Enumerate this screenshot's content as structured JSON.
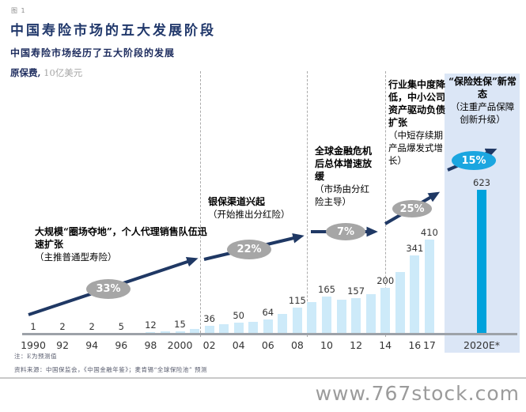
{
  "figure_label": "图 1",
  "chart_data": {
    "type": "bar",
    "title": "中国寿险市场的五大发展阶段",
    "subtitle": "中国寿险市场经历了五大阶段的发展",
    "unit_bold": "原保费,",
    "unit": "10亿美元",
    "ylim": [
      0,
      623
    ],
    "grid": false,
    "note": "bars with est:true are unlabeled intermediate years estimated from the plot",
    "bars": [
      {
        "year": "1990",
        "value": 1,
        "label": "1",
        "tick": "1990"
      },
      {
        "year": "1991",
        "value": 1.5,
        "est": true
      },
      {
        "year": "1992",
        "value": 2,
        "label": "2",
        "tick": "92"
      },
      {
        "year": "1993",
        "value": 2,
        "est": true
      },
      {
        "year": "1994",
        "value": 2,
        "label": "2",
        "tick": "94"
      },
      {
        "year": "1995",
        "value": 3.5,
        "est": true
      },
      {
        "year": "1996",
        "value": 5,
        "label": "5",
        "tick": "96"
      },
      {
        "year": "1997",
        "value": 8,
        "est": true
      },
      {
        "year": "1998",
        "value": 12,
        "label": "12",
        "tick": "98"
      },
      {
        "year": "1999",
        "value": 13,
        "est": true
      },
      {
        "year": "2000",
        "value": 15,
        "label": "15",
        "tick": "2000"
      },
      {
        "year": "2001",
        "value": 25,
        "est": true
      },
      {
        "year": "2002",
        "value": 36,
        "label": "36",
        "tick": "02"
      },
      {
        "year": "2003",
        "value": 43,
        "est": true
      },
      {
        "year": "2004",
        "value": 50,
        "label": "50",
        "tick": "04"
      },
      {
        "year": "2005",
        "value": 56,
        "est": true
      },
      {
        "year": "2006",
        "value": 64,
        "label": "64",
        "tick": "06"
      },
      {
        "year": "2007",
        "value": 88,
        "est": true
      },
      {
        "year": "2008",
        "value": 115,
        "label": "115",
        "tick": "08"
      },
      {
        "year": "2009",
        "value": 140,
        "est": true
      },
      {
        "year": "2010",
        "value": 165,
        "label": "165",
        "tick": "10"
      },
      {
        "year": "2011",
        "value": 150,
        "est": true
      },
      {
        "year": "2012",
        "value": 157,
        "label": "157",
        "tick": "12"
      },
      {
        "year": "2013",
        "value": 175,
        "est": true
      },
      {
        "year": "2014",
        "value": 200,
        "label": "200",
        "tick": "14"
      },
      {
        "year": "2015",
        "value": 270,
        "est": true
      },
      {
        "year": "2016",
        "value": 341,
        "label": "341",
        "tick": "16"
      },
      {
        "year": "2017",
        "value": 410,
        "label": "410",
        "tick": "17"
      },
      {
        "year": "2020E",
        "value": 623,
        "label": "623",
        "tick": "2020E*",
        "highlight": true
      }
    ],
    "stages": [
      {
        "growth": "33%",
        "bold": "大规模“圈场夺地”，个人代理销售队伍迅速扩张",
        "note": "（主推普通型寿险）"
      },
      {
        "growth": "22%",
        "bold": "银保渠道兴起",
        "note": "（开始推出分红险）"
      },
      {
        "growth": "7%",
        "bold": "全球金融危机后总体增速放缓",
        "note": "（市场由分红险主导）"
      },
      {
        "growth": "25%",
        "bold": "行业集中度降低，中小公司资产驱动负债扩张",
        "note": "（中短存续期产品爆发式增长）"
      },
      {
        "growth": "15%",
        "bold": "“保险姓保”新常态",
        "note": "（注重产品保障创新升级）"
      }
    ],
    "colors": {
      "bar_light": "#cdeaf9",
      "bar_accent": "#00a2dc",
      "highlight_bg": "#dbe6f6",
      "arrow_navy": "#1f3864",
      "oval_gray": "#a6a6a6",
      "oval_blue": "#1ba6e0",
      "title_navy": "#21386b"
    }
  },
  "footnotes": [
    "注：E为预测值",
    "资料来源：中国保监会，《中国金融年鉴》；麦肯锡“全球保险池” 预测"
  ],
  "watermark": "www.767stock.com"
}
